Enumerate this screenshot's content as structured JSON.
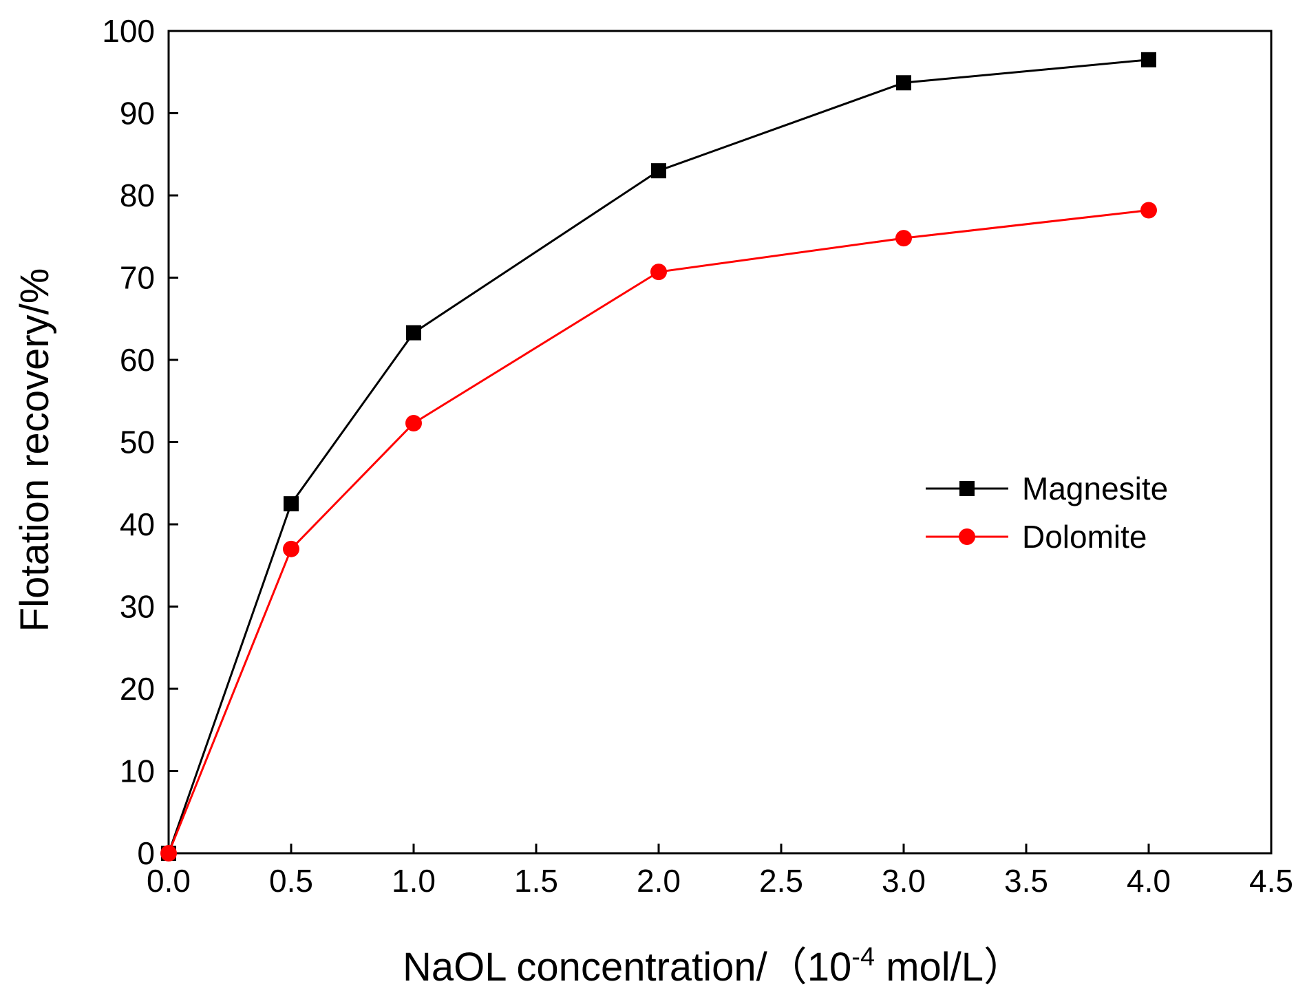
{
  "chart_data": {
    "type": "line",
    "title": "",
    "xlabel_prefix": "NaOL concentration/（10",
    "xlabel_sup": "-4",
    "xlabel_suffix": " mol/L）",
    "ylabel": "Flotation recovery/%",
    "xlim": [
      0,
      4.5
    ],
    "ylim": [
      0,
      100
    ],
    "xticks": [
      0.0,
      0.5,
      1.0,
      1.5,
      2.0,
      2.5,
      3.0,
      3.5,
      4.0,
      4.5
    ],
    "xtick_labels": [
      "0.0",
      "0.5",
      "1.0",
      "1.5",
      "2.0",
      "2.5",
      "3.0",
      "3.5",
      "4.0",
      "4.5"
    ],
    "yticks": [
      0,
      10,
      20,
      30,
      40,
      50,
      60,
      70,
      80,
      90,
      100
    ],
    "ytick_labels": [
      "0",
      "10",
      "20",
      "30",
      "40",
      "50",
      "60",
      "70",
      "80",
      "90",
      "100"
    ],
    "grid": false,
    "legend_position": "right",
    "series": [
      {
        "name": "Magnesite",
        "color": "#000000",
        "marker": "square",
        "x": [
          0,
          0.5,
          1.0,
          2.0,
          3.0,
          4.0
        ],
        "y": [
          0,
          42.5,
          63.3,
          83.0,
          93.7,
          96.5
        ]
      },
      {
        "name": "Dolomite",
        "color": "#ff0000",
        "marker": "circle",
        "x": [
          0,
          0.5,
          1.0,
          2.0,
          3.0,
          4.0
        ],
        "y": [
          0,
          37.0,
          52.3,
          70.7,
          74.8,
          78.2
        ]
      }
    ]
  }
}
